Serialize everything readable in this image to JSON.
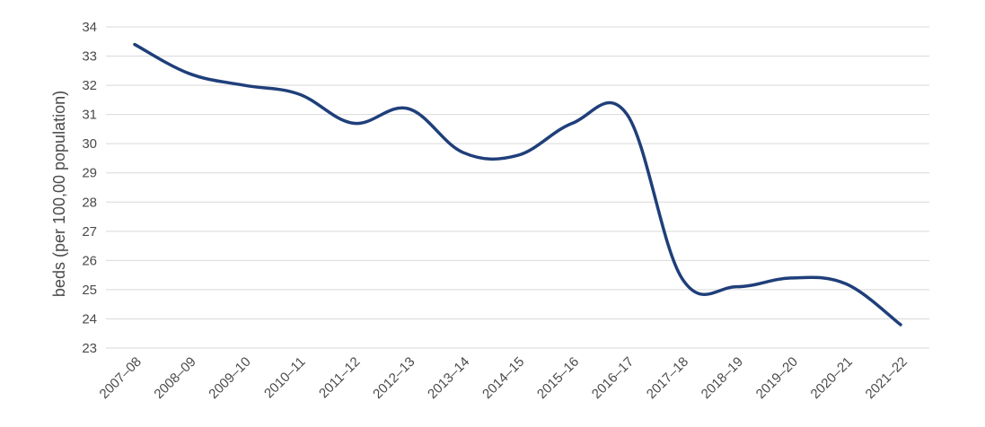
{
  "colors": {
    "series": "#1f3f7a",
    "grid": "#d9d9d9",
    "text": "#4a4a4a"
  },
  "chart_data": {
    "type": "line",
    "title": "",
    "xlabel": "",
    "ylabel": "beds (per 100,00 population)",
    "ylim": [
      23,
      34
    ],
    "yticks": [
      23,
      24,
      25,
      26,
      27,
      28,
      29,
      30,
      31,
      32,
      33,
      34
    ],
    "grid": true,
    "legend": "none",
    "categories": [
      "2007–08",
      "2008–09",
      "2009–10",
      "2010–11",
      "2011–12",
      "2012–13",
      "2013–14",
      "2014–15",
      "2015–16",
      "2016–17",
      "2017–18",
      "2018–19",
      "2019–20",
      "2020–21",
      "2021–22"
    ],
    "series": [
      {
        "values": [
          33.4,
          32.4,
          32.0,
          31.7,
          30.7,
          31.2,
          29.7,
          29.6,
          30.7,
          31.0,
          25.4,
          25.1,
          25.4,
          25.2,
          23.8
        ]
      }
    ]
  }
}
